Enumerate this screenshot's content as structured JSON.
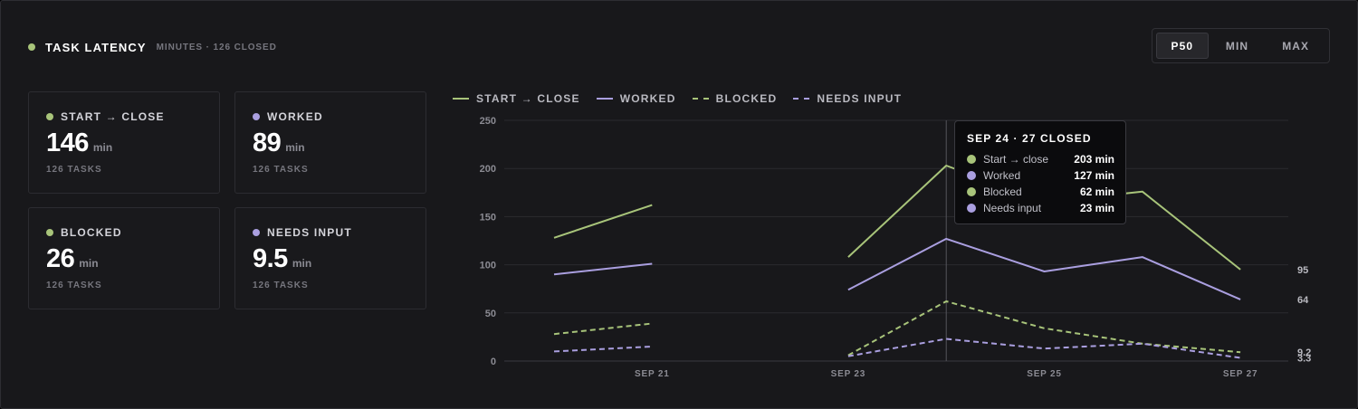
{
  "header": {
    "title": "TASK LATENCY",
    "subtitle": "MINUTES · 126 CLOSED",
    "dot_color": "#a8c47a"
  },
  "percentile_toggle": {
    "options": [
      "P50",
      "MIN",
      "MAX"
    ],
    "selected": "P50"
  },
  "colors": {
    "green": "#a8c47a",
    "purple": "#aa9fe0"
  },
  "cards": [
    {
      "label": "START → CLOSE",
      "value": "146",
      "unit": "min",
      "sub": "126 TASKS",
      "color": "#a8c47a"
    },
    {
      "label": "WORKED",
      "value": "89",
      "unit": "min",
      "sub": "126 TASKS",
      "color": "#aa9fe0"
    },
    {
      "label": "BLOCKED",
      "value": "26",
      "unit": "min",
      "sub": "126 TASKS",
      "color": "#a8c47a"
    },
    {
      "label": "NEEDS INPUT",
      "value": "9.5",
      "unit": "min",
      "sub": "126 TASKS",
      "color": "#aa9fe0"
    }
  ],
  "tooltip": {
    "title": "SEP 24 · 27 CLOSED",
    "rows": [
      {
        "name": "Start → close",
        "value": "203 min",
        "color": "#a8c47a"
      },
      {
        "name": "Worked",
        "value": "127 min",
        "color": "#aa9fe0"
      },
      {
        "name": "Blocked",
        "value": "62 min",
        "color": "#a8c47a"
      },
      {
        "name": "Needs input",
        "value": "23 min",
        "color": "#aa9fe0"
      }
    ]
  },
  "chart_data": {
    "type": "line",
    "x": [
      "Sep 20",
      "Sep 21",
      "Sep 22",
      "Sep 23",
      "Sep 24",
      "Sep 25",
      "Sep 26",
      "Sep 27"
    ],
    "x_tick_labels": [
      "",
      "SEP 21",
      "",
      "SEP 23",
      "",
      "SEP 25",
      "",
      "SEP 27"
    ],
    "ylim": [
      0,
      250
    ],
    "y_ticks": [
      0,
      50,
      100,
      150,
      200,
      250
    ],
    "grid": true,
    "legend_position": "top",
    "hover_x": "Sep 24",
    "series": [
      {
        "name": "START → CLOSE",
        "style": "solid",
        "color": "#a8c47a",
        "values": [
          128,
          162,
          null,
          108,
          203,
          165,
          176,
          95
        ]
      },
      {
        "name": "WORKED",
        "style": "solid",
        "color": "#aa9fe0",
        "values": [
          90,
          101,
          null,
          74,
          127,
          93,
          108,
          64
        ]
      },
      {
        "name": "BLOCKED",
        "style": "dashed",
        "color": "#a8c47a",
        "values": [
          28,
          39,
          null,
          6,
          62,
          34,
          18,
          9.2
        ]
      },
      {
        "name": "NEEDS INPUT",
        "style": "dashed",
        "color": "#aa9fe0",
        "values": [
          10,
          15,
          null,
          5,
          23,
          13,
          18,
          3.3
        ]
      }
    ],
    "end_labels": [
      "95",
      "64",
      "9.2",
      "3.3"
    ]
  }
}
